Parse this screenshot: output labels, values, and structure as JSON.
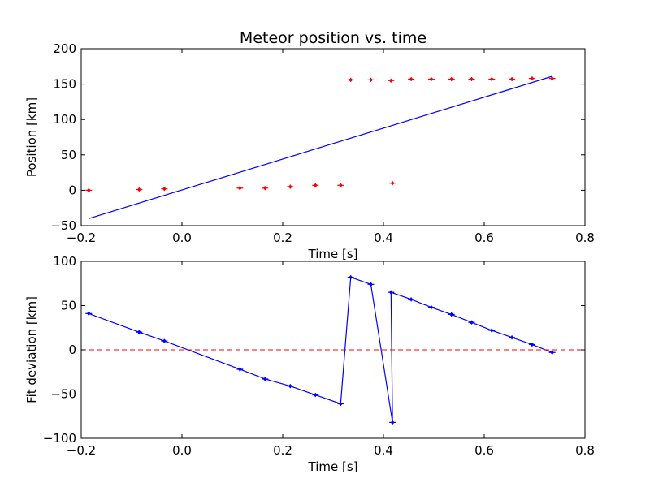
{
  "chart_data": [
    {
      "type": "scatter",
      "title": "Meteor position vs. time",
      "xlabel": "Time [s]",
      "ylabel": "Position [km]",
      "xlim": [
        -0.2,
        0.8
      ],
      "ylim": [
        -50,
        200
      ],
      "xticks": [
        -0.2,
        0.0,
        0.2,
        0.4,
        0.6,
        0.8
      ],
      "xtick_labels": [
        "−0.2",
        "0.0",
        "0.2",
        "0.4",
        "0.6",
        "0.8"
      ],
      "yticks": [
        -50,
        0,
        50,
        100,
        150,
        200
      ],
      "ytick_labels": [
        "−50",
        "0",
        "50",
        "100",
        "150",
        "200"
      ],
      "grid": false,
      "series": [
        {
          "kind": "points",
          "color": "#ff0000",
          "x": [
            -0.185,
            -0.085,
            -0.035,
            0.115,
            0.165,
            0.215,
            0.265,
            0.315,
            0.335,
            0.375,
            0.415,
            0.418,
            0.455,
            0.495,
            0.535,
            0.575,
            0.615,
            0.655,
            0.695,
            0.735
          ],
          "y": [
            0,
            1,
            2,
            3,
            3,
            5,
            7,
            7,
            156,
            156,
            155,
            10,
            157,
            157,
            157,
            157,
            157,
            157,
            158,
            158
          ]
        },
        {
          "kind": "line",
          "color": "#0000ff",
          "x": [
            -0.185,
            0.735
          ],
          "y": [
            -40,
            161
          ]
        }
      ]
    },
    {
      "type": "line",
      "title": "",
      "xlabel": "Time [s]",
      "ylabel": "Fit deviation [km]",
      "xlim": [
        -0.2,
        0.8
      ],
      "ylim": [
        -100,
        100
      ],
      "xticks": [
        -0.2,
        0.0,
        0.2,
        0.4,
        0.6,
        0.8
      ],
      "xtick_labels": [
        "−0.2",
        "0.0",
        "0.2",
        "0.4",
        "0.6",
        "0.8"
      ],
      "yticks": [
        -100,
        -50,
        0,
        50,
        100
      ],
      "ytick_labels": [
        "−100",
        "−50",
        "0",
        "50",
        "100"
      ],
      "grid": false,
      "series": [
        {
          "kind": "line-markers",
          "color": "#0000ff",
          "x": [
            -0.185,
            -0.085,
            -0.035,
            0.115,
            0.165,
            0.215,
            0.265,
            0.315,
            0.335,
            0.375,
            0.418,
            0.415,
            0.455,
            0.495,
            0.535,
            0.575,
            0.615,
            0.655,
            0.695,
            0.735
          ],
          "y": [
            41,
            20,
            10,
            -22,
            -33,
            -41,
            -51,
            -61,
            82,
            74,
            -82,
            65,
            57,
            48,
            40,
            31,
            22,
            14,
            6,
            -3
          ]
        },
        {
          "kind": "hline-dashed",
          "color": "#ff0000",
          "y": 0
        }
      ]
    }
  ]
}
